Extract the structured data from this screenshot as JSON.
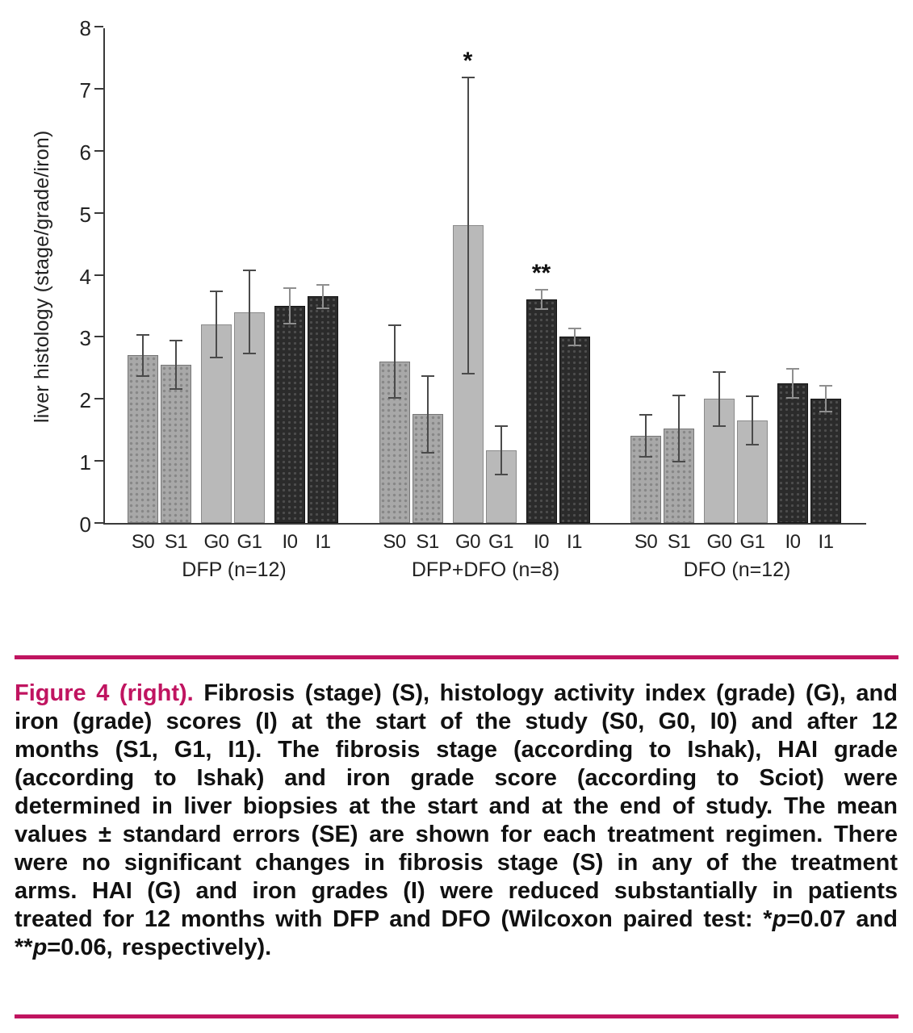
{
  "chart_data": {
    "type": "bar",
    "title": "",
    "xlabel": "",
    "ylabel": "liver histology (stage/grade/iron)",
    "ylim": [
      0,
      8
    ],
    "yticks": [
      0,
      1,
      2,
      3,
      4,
      5,
      6,
      7,
      8
    ],
    "grid": false,
    "legend_position": "none",
    "error_bars": "standard error",
    "groups": [
      {
        "label": "DFP (n=12)",
        "bars": [
          {
            "x": "S0",
            "value": 2.7,
            "se": 0.35,
            "style": "S"
          },
          {
            "x": "S1",
            "value": 2.55,
            "se": 0.4,
            "style": "S"
          },
          {
            "x": "G0",
            "value": 3.2,
            "se": 0.55,
            "style": "G"
          },
          {
            "x": "G1",
            "value": 3.4,
            "se": 0.68,
            "style": "G"
          },
          {
            "x": "I0",
            "value": 3.5,
            "se": 0.3,
            "style": "I"
          },
          {
            "x": "I1",
            "value": 3.65,
            "se": 0.2,
            "style": "I"
          }
        ]
      },
      {
        "label": "DFP+DFO (n=8)",
        "bars": [
          {
            "x": "S0",
            "value": 2.6,
            "se": 0.6,
            "style": "S"
          },
          {
            "x": "S1",
            "value": 1.75,
            "se": 0.63,
            "style": "S"
          },
          {
            "x": "G0",
            "value": 4.8,
            "se": 2.4,
            "style": "G",
            "annotation": "*"
          },
          {
            "x": "G1",
            "value": 1.17,
            "se": 0.4,
            "style": "G"
          },
          {
            "x": "I0",
            "value": 3.6,
            "se": 0.17,
            "style": "I",
            "annotation": "**"
          },
          {
            "x": "I1",
            "value": 3.0,
            "se": 0.15,
            "style": "I"
          }
        ]
      },
      {
        "label": "DFO (n=12)",
        "bars": [
          {
            "x": "S0",
            "value": 1.4,
            "se": 0.35,
            "style": "S"
          },
          {
            "x": "S1",
            "value": 1.52,
            "se": 0.55,
            "style": "S"
          },
          {
            "x": "G0",
            "value": 2.0,
            "se": 0.45,
            "style": "G"
          },
          {
            "x": "G1",
            "value": 1.65,
            "se": 0.4,
            "style": "G"
          },
          {
            "x": "I0",
            "value": 2.25,
            "se": 0.25,
            "style": "I"
          },
          {
            "x": "I1",
            "value": 2.0,
            "se": 0.22,
            "style": "I"
          }
        ]
      }
    ]
  },
  "caption": {
    "parts": [
      {
        "text": "Figure 4 (right).",
        "style": "heading"
      },
      {
        "text": " Fibrosis (stage) (S), histology activity index (grade) (G), and iron (grade) scores (I) at the start of the study (S0, G0, I0) and after 12 months (S1, G1, I1). The fibrosis stage (according to Ishak), HAI grade (according to Ishak) and iron grade score (according to Sciot) were determined in liver biopsies at the start and at the end of study. The mean values ± standard errors (SE) are shown for each treatment regimen. There were no significant changes in fibrosis stage (S) in any of the treatment arms.  HAI (G) and iron grades (I) were reduced substantially in patients treated for 12 months with DFP and DFO (Wilcoxon paired test: *",
        "style": "body"
      },
      {
        "text": "p",
        "style": "body-italic"
      },
      {
        "text": "=0.07 and **",
        "style": "body"
      },
      {
        "text": "p",
        "style": "body-italic"
      },
      {
        "text": "=0.06, respectively).",
        "style": "body"
      }
    ]
  },
  "colors": {
    "accent_magenta": "#c01460",
    "axis": "#3a3a3a",
    "bar_s_gray": "#a8a8a8",
    "bar_g_lightgray": "#b9b9b9",
    "bar_i_dark": "#2b2b2b",
    "error_bar": "#4a4a4a"
  }
}
